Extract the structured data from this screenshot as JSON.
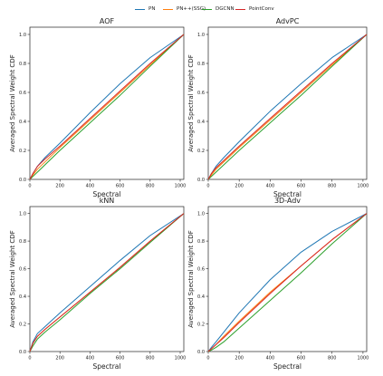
{
  "chart_data": {
    "legend": {
      "placement": "top-center",
      "entries": [
        {
          "name": "PN",
          "color": "#1f77b4"
        },
        {
          "name": "PN++(SSG)",
          "color": "#ff7f0e"
        },
        {
          "name": "DGCNN",
          "color": "#2ca02c"
        },
        {
          "name": "PointConv",
          "color": "#d62728"
        }
      ]
    },
    "panels": [
      {
        "type": "line",
        "title": "AOF",
        "xlabel": "Spectral",
        "ylabel": "Averaged Spectral Weight CDF",
        "xlim": [
          0,
          1024
        ],
        "ylim": [
          0,
          1.05
        ],
        "xticks": [
          0,
          200,
          400,
          600,
          800,
          1000
        ],
        "yticks": [
          0.0,
          0.2,
          0.4,
          0.6,
          0.8,
          1.0
        ],
        "grid": false,
        "series": [
          {
            "name": "PN",
            "color": "#1f77b4",
            "x": [
              0,
              20,
              50,
              100,
              200,
              400,
              600,
              800,
              1024
            ],
            "y": [
              0,
              0.04,
              0.09,
              0.15,
              0.25,
              0.46,
              0.66,
              0.84,
              1.0
            ]
          },
          {
            "name": "PN++(SSG)",
            "color": "#ff7f0e",
            "x": [
              0,
              20,
              50,
              100,
              200,
              400,
              600,
              800,
              1024
            ],
            "y": [
              0,
              0.03,
              0.07,
              0.12,
              0.22,
              0.41,
              0.6,
              0.79,
              1.0
            ]
          },
          {
            "name": "DGCNN",
            "color": "#2ca02c",
            "x": [
              0,
              20,
              50,
              100,
              200,
              400,
              600,
              800,
              1024
            ],
            "y": [
              0,
              0.02,
              0.05,
              0.1,
              0.2,
              0.39,
              0.58,
              0.78,
              1.0
            ]
          },
          {
            "name": "PointConv",
            "color": "#d62728",
            "x": [
              0,
              20,
              50,
              100,
              200,
              400,
              600,
              800,
              1024
            ],
            "y": [
              0,
              0.04,
              0.09,
              0.14,
              0.23,
              0.42,
              0.61,
              0.8,
              1.0
            ]
          }
        ]
      },
      {
        "type": "line",
        "title": "AdvPC",
        "xlabel": "Spectral",
        "ylabel": "Averaged Spectral Weight CDF",
        "xlim": [
          0,
          1024
        ],
        "ylim": [
          0,
          1.05
        ],
        "xticks": [
          0,
          200,
          400,
          600,
          800,
          1000
        ],
        "yticks": [
          0.0,
          0.2,
          0.4,
          0.6,
          0.8,
          1.0
        ],
        "grid": false,
        "series": [
          {
            "name": "PN",
            "color": "#1f77b4",
            "x": [
              0,
              20,
              50,
              100,
              200,
              400,
              600,
              800,
              1024
            ],
            "y": [
              0,
              0.04,
              0.09,
              0.15,
              0.26,
              0.47,
              0.66,
              0.84,
              1.0
            ]
          },
          {
            "name": "PN++(SSG)",
            "color": "#ff7f0e",
            "x": [
              0,
              20,
              50,
              100,
              200,
              400,
              600,
              800,
              1024
            ],
            "y": [
              0,
              0.03,
              0.07,
              0.12,
              0.22,
              0.41,
              0.6,
              0.79,
              1.0
            ]
          },
          {
            "name": "DGCNN",
            "color": "#2ca02c",
            "x": [
              0,
              20,
              50,
              100,
              200,
              400,
              600,
              800,
              1024
            ],
            "y": [
              0,
              0.02,
              0.05,
              0.1,
              0.2,
              0.39,
              0.58,
              0.78,
              1.0
            ]
          },
          {
            "name": "PointConv",
            "color": "#d62728",
            "x": [
              0,
              20,
              50,
              100,
              200,
              400,
              600,
              800,
              1024
            ],
            "y": [
              0,
              0.04,
              0.08,
              0.13,
              0.23,
              0.42,
              0.61,
              0.8,
              1.0
            ]
          }
        ]
      },
      {
        "type": "line",
        "title": "kNN",
        "xlabel": "Spectral",
        "ylabel": "Averaged Spectral Weight CDF",
        "xlim": [
          0,
          1024
        ],
        "ylim": [
          0,
          1.05
        ],
        "xticks": [
          0,
          200,
          400,
          600,
          800,
          1000
        ],
        "yticks": [
          0.0,
          0.2,
          0.4,
          0.6,
          0.8,
          1.0
        ],
        "grid": false,
        "series": [
          {
            "name": "PN",
            "color": "#1f77b4",
            "x": [
              0,
              20,
              50,
              100,
              200,
              400,
              600,
              800,
              1024
            ],
            "y": [
              0,
              0.07,
              0.13,
              0.18,
              0.28,
              0.47,
              0.66,
              0.84,
              1.0
            ]
          },
          {
            "name": "PN++(SSG)",
            "color": "#ff7f0e",
            "x": [
              0,
              20,
              50,
              100,
              200,
              400,
              600,
              800,
              1024
            ],
            "y": [
              0,
              0.06,
              0.11,
              0.16,
              0.25,
              0.43,
              0.61,
              0.8,
              1.0
            ]
          },
          {
            "name": "DGCNN",
            "color": "#2ca02c",
            "x": [
              0,
              20,
              50,
              100,
              200,
              400,
              600,
              800,
              1024
            ],
            "y": [
              0,
              0.04,
              0.09,
              0.14,
              0.23,
              0.42,
              0.6,
              0.79,
              1.0
            ]
          },
          {
            "name": "PointConv",
            "color": "#d62728",
            "x": [
              0,
              20,
              50,
              100,
              200,
              400,
              600,
              800,
              1024
            ],
            "y": [
              0,
              0.06,
              0.11,
              0.16,
              0.25,
              0.43,
              0.61,
              0.8,
              1.0
            ]
          }
        ]
      },
      {
        "type": "line",
        "title": "3D-Adv",
        "xlabel": "Spectral",
        "ylabel": "Averaged Spectral Weight CDF",
        "xlim": [
          0,
          1024
        ],
        "ylim": [
          0,
          1.05
        ],
        "xticks": [
          0,
          200,
          400,
          600,
          800,
          1000
        ],
        "yticks": [
          0.0,
          0.2,
          0.4,
          0.6,
          0.8,
          1.0
        ],
        "grid": false,
        "series": [
          {
            "name": "PN",
            "color": "#1f77b4",
            "x": [
              0,
              20,
              50,
              100,
              200,
              400,
              600,
              800,
              1024
            ],
            "y": [
              0,
              0.03,
              0.07,
              0.14,
              0.28,
              0.52,
              0.72,
              0.87,
              1.0
            ]
          },
          {
            "name": "PN++(SSG)",
            "color": "#ff7f0e",
            "x": [
              0,
              20,
              50,
              100,
              200,
              400,
              600,
              800,
              1024
            ],
            "y": [
              0,
              0.02,
              0.05,
              0.11,
              0.22,
              0.43,
              0.62,
              0.81,
              1.0
            ]
          },
          {
            "name": "DGCNN",
            "color": "#2ca02c",
            "x": [
              0,
              20,
              50,
              100,
              200,
              400,
              600,
              800,
              1024
            ],
            "y": [
              0,
              0.01,
              0.03,
              0.07,
              0.17,
              0.37,
              0.57,
              0.78,
              1.0
            ]
          },
          {
            "name": "PointConv",
            "color": "#d62728",
            "x": [
              0,
              20,
              50,
              100,
              200,
              400,
              600,
              800,
              1024
            ],
            "y": [
              0,
              0.02,
              0.05,
              0.1,
              0.21,
              0.42,
              0.62,
              0.81,
              1.0
            ]
          }
        ]
      }
    ]
  }
}
